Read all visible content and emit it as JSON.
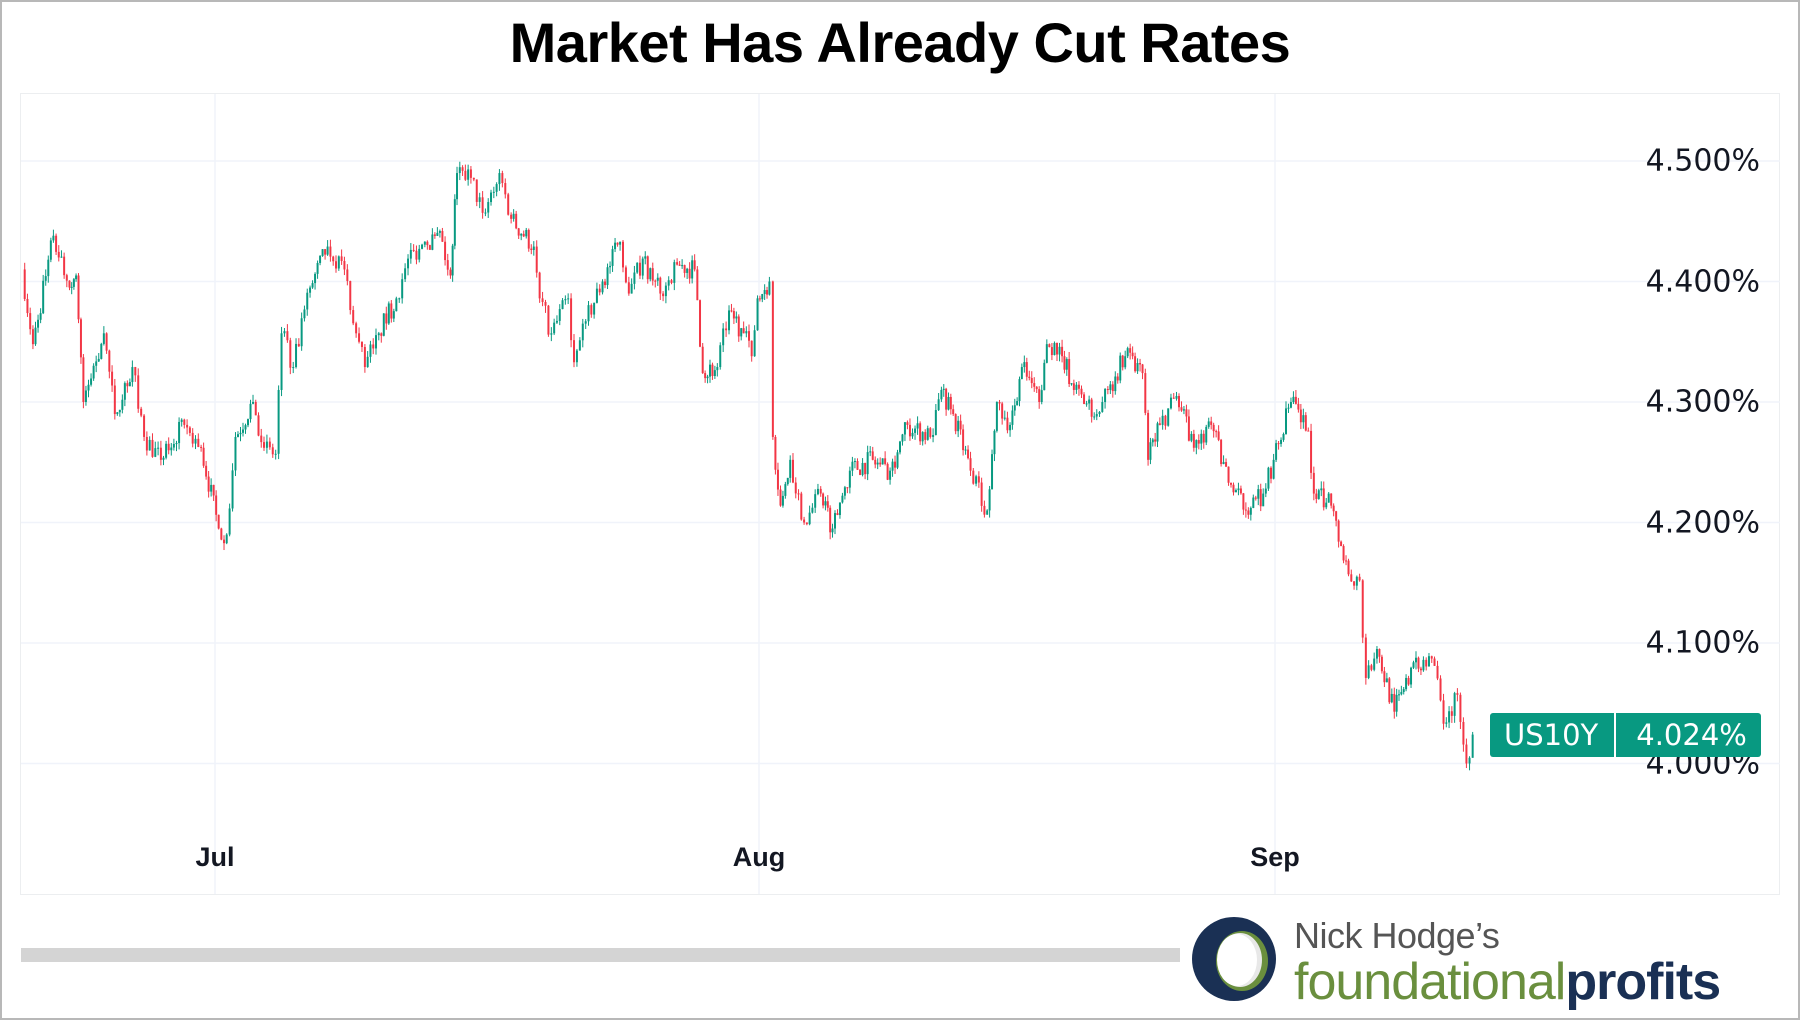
{
  "title": "Market Has Already Cut Rates",
  "colors": {
    "up": "#089981",
    "down": "#f23645",
    "badge": "#089981",
    "grid": "#f0f3fa",
    "logo_navy": "#1a3054",
    "logo_green": "#6a8f3e"
  },
  "badge": {
    "symbol": "US10Y",
    "value": "4.024%"
  },
  "scrollbar": {
    "icon": "horizontal-scrollbar"
  },
  "logo": {
    "line1": "Nick Hodge’s",
    "line2a": "foundational",
    "line2b": "profits",
    "icon": "ring-logo-icon"
  },
  "chart_data": {
    "type": "candlestick",
    "title": "Market Has Already Cut Rates",
    "symbol": "US10Y",
    "last_value": 4.024,
    "ylim": [
      3.93,
      4.555
    ],
    "yticks": [
      4.5,
      4.4,
      4.3,
      4.2,
      4.1,
      4.0
    ],
    "ytick_labels": [
      "4.500%",
      "4.400%",
      "4.300%",
      "4.200%",
      "4.100%",
      "4.000%"
    ],
    "xticks": [
      "Jul",
      "Aug",
      "Sep"
    ],
    "grid": true,
    "y_axis_side": "right",
    "points": [
      [
        "Jun 20 00:00",
        4.41
      ],
      [
        "Jun 20 15:00",
        4.348
      ],
      [
        "Jun 21 19:00",
        4.438
      ],
      [
        "Jun 22 17:00",
        4.395
      ],
      [
        "Jun 23 02:00",
        4.405
      ],
      [
        "Jun 23 12:00",
        4.3
      ],
      [
        "Jun 24 16:00",
        4.357
      ],
      [
        "Jun 25 07:00",
        4.29
      ],
      [
        "Jun 26 07:00",
        4.329
      ],
      [
        "Jun 26 23:00",
        4.271
      ],
      [
        "Jun 27 22:00",
        4.252
      ],
      [
        "Jun 29 06:00",
        4.281
      ],
      [
        "Jun 30 05:00",
        4.262
      ],
      [
        "Jul 1 05:00",
        4.195
      ],
      [
        "Jul 1 16:00",
        4.19
      ],
      [
        "Jul 2 04:00",
        4.271
      ],
      [
        "Jul 3 04:00",
        4.3
      ],
      [
        "Jul 3 19:00",
        4.262
      ],
      [
        "Jul 4 11:00",
        4.257
      ],
      [
        "Jul 4 19:00",
        4.357
      ],
      [
        "Jul 5 11:00",
        4.329
      ],
      [
        "Jul 6 10:00",
        4.395
      ],
      [
        "Jul 7 10:00",
        4.429
      ],
      [
        "Jul 8 09:00",
        4.41
      ],
      [
        "Jul 9 01:00",
        4.357
      ],
      [
        "Jul 9 13:00",
        4.329
      ],
      [
        "Jul 10 08:00",
        4.357
      ],
      [
        "Jul 11 08:00",
        4.386
      ],
      [
        "Jul 12 00:00",
        4.419
      ],
      [
        "Jul 12 23:00",
        4.433
      ],
      [
        "Jul 13 23:00",
        4.433
      ],
      [
        "Jul 14 10:00",
        4.405
      ],
      [
        "Jul 14 19:00",
        4.49
      ],
      [
        "Jul 15 14:00",
        4.486
      ],
      [
        "Jul 16 06:00",
        4.457
      ],
      [
        "Jul 17 05:00",
        4.49
      ],
      [
        "Jul 17 21:00",
        4.452
      ],
      [
        "Jul 19 04:00",
        4.429
      ],
      [
        "Jul 19 12:00",
        4.386
      ],
      [
        "Jul 20 04:00",
        4.357
      ],
      [
        "Jul 21 03:00",
        4.386
      ],
      [
        "Jul 21 11:00",
        4.333
      ],
      [
        "Jul 22 03:00",
        4.367
      ],
      [
        "Jul 23 02:00",
        4.4
      ],
      [
        "Jul 24 02:00",
        4.433
      ],
      [
        "Jul 24 14:00",
        4.39
      ],
      [
        "Jul 25 09:00",
        4.419
      ],
      [
        "Jul 26 09:00",
        4.39
      ],
      [
        "Jul 27 08:00",
        4.414
      ],
      [
        "Jul 28 08:00",
        4.41
      ],
      [
        "Jul 28 19:00",
        4.324
      ],
      [
        "Jul 29 15:00",
        4.329
      ],
      [
        "Jul 30 07:00",
        4.376
      ],
      [
        "Jul 31 03:00",
        4.357
      ],
      [
        "Jul 31 14:00",
        4.338
      ],
      [
        "Jul 31 22:00",
        4.386
      ],
      [
        "Aug 1 15:00",
        4.4
      ],
      [
        "Aug 1 20:00",
        4.271
      ],
      [
        "Aug 2 07:00",
        4.214
      ],
      [
        "Aug 2 21:00",
        4.252
      ],
      [
        "Aug 3 17:00",
        4.2
      ],
      [
        "Aug 4 17:00",
        4.224
      ],
      [
        "Aug 5 10:00",
        4.195
      ],
      [
        "Aug 6 11:00",
        4.243
      ],
      [
        "Aug 7 20:00",
        4.252
      ],
      [
        "Aug 8 21:00",
        4.243
      ],
      [
        "Aug 9 22:00",
        4.281
      ],
      [
        "Aug 11 07:00",
        4.271
      ],
      [
        "Aug 11 23:00",
        4.31
      ],
      [
        "Aug 12 16:00",
        4.29
      ],
      [
        "Aug 13 17:00",
        4.243
      ],
      [
        "Aug 14 17:00",
        4.21
      ],
      [
        "Aug 15 07:00",
        4.3
      ],
      [
        "Aug 16 02:00",
        4.281
      ],
      [
        "Aug 16 19:00",
        4.329
      ],
      [
        "Aug 17 20:00",
        4.3
      ],
      [
        "Aug 18 07:00",
        4.348
      ],
      [
        "Aug 19 05:00",
        4.338
      ],
      [
        "Aug 19 22:00",
        4.31
      ],
      [
        "Aug 21 07:00",
        4.29
      ],
      [
        "Aug 21 23:00",
        4.31
      ],
      [
        "Aug 23 00:00",
        4.338
      ],
      [
        "Aug 24 01:00",
        4.324
      ],
      [
        "Aug 24 09:00",
        4.252
      ],
      [
        "Aug 25 02:00",
        4.281
      ],
      [
        "Aug 26 02:00",
        4.305
      ],
      [
        "Aug 27 03:00",
        4.262
      ],
      [
        "Aug 28 04:00",
        4.281
      ],
      [
        "Aug 29 05:00",
        4.233
      ],
      [
        "Aug 30 06:00",
        4.21
      ],
      [
        "Aug 31 07:00",
        4.224
      ],
      [
        "Aug 31 22:00",
        4.252
      ],
      [
        "Sep 1 23:00",
        4.3
      ],
      [
        "Sep 3 00:00",
        4.276
      ],
      [
        "Sep 3 08:00",
        4.224
      ],
      [
        "Sep 4 09:00",
        4.214
      ],
      [
        "Sep 5 10:00",
        4.157
      ],
      [
        "Sep 6 02:00",
        4.152
      ],
      [
        "Sep 6 11:00",
        4.071
      ],
      [
        "Sep 7 03:00",
        4.095
      ],
      [
        "Sep 8 04:00",
        4.043
      ],
      [
        "Sep 8 21:00",
        4.071
      ],
      [
        "Sep 9 22:00",
        4.086
      ],
      [
        "Sep 10 14:00",
        4.081
      ],
      [
        "Sep 11 03:00",
        4.033
      ],
      [
        "Sep 11 23:00",
        4.057
      ],
      [
        "Sep 12 12:00",
        4.0
      ],
      [
        "Sep 12 21:00",
        4.024
      ]
    ]
  }
}
